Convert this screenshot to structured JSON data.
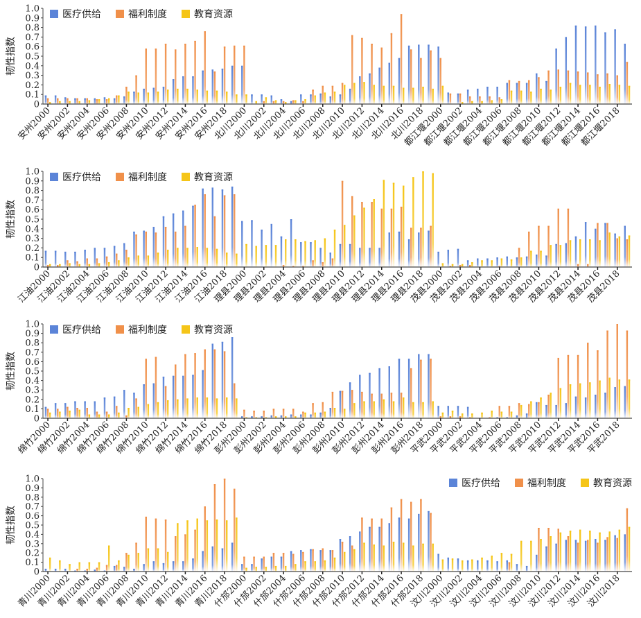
{
  "chart_data": [
    {
      "type": "bar",
      "ylabel": "韧性指数",
      "ylim": [
        0,
        1.0
      ],
      "yticks": [
        "0",
        "0.1",
        "0.2",
        "0.3",
        "0.4",
        "0.5",
        "0.6",
        "0.7",
        "0.8",
        "0.9",
        "1.0"
      ],
      "legend": [
        "医疗供给",
        "福利制度",
        "教育资源"
      ],
      "legend_position": "top-left",
      "regions": [
        "安州",
        "北川",
        "都江堰"
      ],
      "years": [
        2000,
        2001,
        2002,
        2003,
        2004,
        2005,
        2006,
        2007,
        2008,
        2009,
        2010,
        2011,
        2012,
        2013,
        2014,
        2015,
        2016,
        2017,
        2018,
        2019
      ],
      "tick_labels": [
        "安州2000",
        "安州2002",
        "安州2004",
        "安州2006",
        "安州2008",
        "安州2010",
        "安州2012",
        "安州2014",
        "安州2016",
        "安州2018",
        "北川2000",
        "北川2002",
        "北川2004",
        "北川2006",
        "北川2008",
        "北川2010",
        "北川2012",
        "北川2014",
        "北川2016",
        "北川2018",
        "都江堰2000",
        "都江堰2002",
        "都江堰2004",
        "都江堰2006",
        "都江堰2008",
        "都江堰2010",
        "都江堰2012",
        "都江堰2014",
        "都江堰2016",
        "都江堰2018"
      ],
      "series": [
        {
          "name": "医疗供给",
          "values": [
            0.09,
            0.09,
            0.07,
            0.06,
            0.06,
            0.06,
            0.07,
            0.06,
            0.08,
            0.13,
            0.16,
            0.17,
            0.18,
            0.26,
            0.29,
            0.29,
            0.35,
            0.36,
            0.37,
            0.4,
            0.4,
            0.1,
            0.1,
            0.09,
            0.05,
            0.03,
            0.1,
            0.1,
            0.11,
            0.08,
            0.1,
            0.16,
            0.29,
            0.32,
            0.38,
            0.43,
            0.48,
            0.61,
            0.62,
            0.62,
            0.6,
            0.12,
            0.11,
            0.15,
            0.16,
            0.18,
            0.18,
            0.22,
            0.22,
            0.22,
            0.32,
            0.24,
            0.58,
            0.7,
            0.82,
            0.81,
            0.82,
            0.75,
            0.78,
            0.63
          ]
        },
        {
          "name": "福利制度",
          "values": [
            0.06,
            0.06,
            0.06,
            0.06,
            0.06,
            0.05,
            0.05,
            0.09,
            0.18,
            0.3,
            0.58,
            0.58,
            0.63,
            0.57,
            0.63,
            0.66,
            0.76,
            0.34,
            0.6,
            0.61,
            0.61,
            0.0,
            0.03,
            0.03,
            0.03,
            0.04,
            0.03,
            0.15,
            0.19,
            0.19,
            0.22,
            0.72,
            0.69,
            0.63,
            0.59,
            0.74,
            0.94,
            0.57,
            0.48,
            0.56,
            0.48,
            0.11,
            0.11,
            0.08,
            0.08,
            0.08,
            0.07,
            0.25,
            0.24,
            0.25,
            0.28,
            0.35,
            0.36,
            0.35,
            0.34,
            0.33,
            0.31,
            0.32,
            0.3,
            0.44
          ]
        },
        {
          "name": "教育资源",
          "values": [
            0.02,
            0.03,
            0.03,
            0.03,
            0.04,
            0.05,
            0.06,
            0.09,
            0.13,
            0.12,
            0.12,
            0.13,
            0.15,
            0.16,
            0.16,
            0.15,
            0.14,
            0.14,
            0.13,
            0.1,
            0.1,
            0.03,
            0.07,
            0.04,
            0.02,
            0.04,
            0.05,
            0.09,
            0.12,
            0.13,
            0.2,
            0.22,
            0.23,
            0.2,
            0.19,
            0.19,
            0.17,
            0.17,
            0.18,
            0.16,
            0.19,
            0.0,
            0.02,
            0.03,
            0.03,
            0.04,
            0.05,
            0.14,
            0.14,
            0.13,
            0.16,
            0.15,
            0.18,
            0.22,
            0.2,
            0.2,
            0.18,
            0.21,
            0.2,
            0.19
          ]
        }
      ]
    },
    {
      "type": "bar",
      "ylabel": "韧性指数",
      "ylim": [
        0,
        1.0
      ],
      "yticks": [
        "0",
        "0.1",
        "0.2",
        "0.3",
        "0.4",
        "0.5",
        "0.6",
        "0.7",
        "0.8",
        "0.9",
        "1.0"
      ],
      "legend": [
        "医疗供给",
        "福利制度",
        "教育资源"
      ],
      "legend_position": "top-left",
      "regions": [
        "江油",
        "理县",
        "茂县"
      ],
      "years": [
        2000,
        2001,
        2002,
        2003,
        2004,
        2005,
        2006,
        2007,
        2008,
        2009,
        2010,
        2011,
        2012,
        2013,
        2014,
        2015,
        2016,
        2017,
        2018,
        2019
      ],
      "tick_labels": [
        "江油2000",
        "江油2002",
        "江油2004",
        "江油2006",
        "江油2008",
        "江油2010",
        "江油2012",
        "江油2014",
        "江油2016",
        "江油2018",
        "理县2000",
        "理县2002",
        "理县2004",
        "理县2006",
        "理县2008",
        "理县2010",
        "理县2012",
        "理县2014",
        "理县2016",
        "理县2018",
        "茂县2000",
        "茂县2002",
        "茂县2004",
        "茂县2006",
        "茂县2008",
        "茂县2010",
        "茂县2012",
        "茂县2014",
        "茂县2016",
        "茂县2018"
      ],
      "series": [
        {
          "name": "医疗供给",
          "values": [
            0.17,
            0.17,
            0.16,
            0.16,
            0.18,
            0.2,
            0.2,
            0.22,
            0.25,
            0.37,
            0.38,
            0.42,
            0.53,
            0.56,
            0.59,
            0.64,
            0.82,
            0.83,
            0.81,
            0.84,
            0.48,
            0.49,
            0.39,
            0.45,
            0.32,
            0.5,
            0.26,
            0.26,
            0.2,
            0.15,
            0.24,
            0.24,
            0.2,
            0.2,
            0.2,
            0.36,
            0.37,
            0.29,
            0.36,
            0.38,
            0.16,
            0.18,
            0.19,
            0.07,
            0.09,
            0.09,
            0.1,
            0.11,
            0.1,
            0.11,
            0.13,
            0.12,
            0.24,
            0.25,
            0.32,
            0.47,
            0.4,
            0.46,
            0.35,
            0.43
          ]
        },
        {
          "name": "福利制度",
          "values": [
            0.02,
            0.02,
            0.07,
            0.06,
            0.09,
            0.09,
            0.11,
            0.14,
            0.18,
            0.34,
            0.37,
            0.36,
            0.42,
            0.37,
            0.43,
            0.65,
            0.76,
            0.53,
            0.75,
            0.76,
            0.0,
            0.0,
            0.0,
            0.0,
            0.02,
            0.01,
            0.01,
            0.07,
            0.05,
            0.09,
            0.9,
            0.74,
            0.68,
            0.68,
            0.61,
            0.61,
            0.63,
            0.41,
            0.41,
            0.43,
            0.0,
            0.01,
            0.02,
            0.02,
            0.0,
            0.0,
            0.01,
            0.0,
            0.2,
            0.37,
            0.43,
            0.43,
            0.61,
            0.61,
            0.03,
            0.03,
            0.46,
            0.46,
            0.3,
            0.29
          ]
        },
        {
          "name": "教育资源",
          "values": [
            0.03,
            0.03,
            0.04,
            0.03,
            0.03,
            0.04,
            0.05,
            0.07,
            0.1,
            0.12,
            0.12,
            0.15,
            0.18,
            0.2,
            0.2,
            0.21,
            0.2,
            0.19,
            0.15,
            0.14,
            0.24,
            0.22,
            0.23,
            0.23,
            0.29,
            0.29,
            0.27,
            0.28,
            0.3,
            0.39,
            0.44,
            0.54,
            0.62,
            0.71,
            0.91,
            0.88,
            0.85,
            0.94,
            1.0,
            0.98,
            0.04,
            0.03,
            0.03,
            0.05,
            0.07,
            0.07,
            0.09,
            0.08,
            0.1,
            0.17,
            0.17,
            0.23,
            0.23,
            0.28,
            0.29,
            0.29,
            0.28,
            0.36,
            0.32,
            0.33
          ]
        }
      ]
    },
    {
      "type": "bar",
      "ylabel": "韧性指数",
      "ylim": [
        0,
        1.0
      ],
      "yticks": [
        "0",
        "0.1",
        "0.2",
        "0.3",
        "0.4",
        "0.5",
        "0.6",
        "0.7",
        "0.8",
        "0.9",
        "1.0"
      ],
      "legend": [
        "医疗供给",
        "福利制度",
        "教育资源"
      ],
      "legend_position": "top-left",
      "regions": [
        "绵竹",
        "彭州",
        "平武"
      ],
      "years": [
        2000,
        2001,
        2002,
        2003,
        2004,
        2005,
        2006,
        2007,
        2008,
        2009,
        2010,
        2011,
        2012,
        2013,
        2014,
        2015,
        2016,
        2017,
        2018,
        2019
      ],
      "tick_labels": [
        "绵竹2000",
        "绵竹2002",
        "绵竹2004",
        "绵竹2006",
        "绵竹2008",
        "绵竹2010",
        "绵竹2012",
        "绵竹2014",
        "绵竹2016",
        "绵竹2018",
        "彭州2000",
        "彭州2002",
        "彭州2004",
        "彭州2006",
        "彭州2008",
        "彭州2010",
        "彭州2012",
        "彭州2014",
        "彭州2016",
        "彭州2018",
        "平武2000",
        "平武2002",
        "平武2004",
        "平武2006",
        "平武2008",
        "平武2010",
        "平武2012",
        "平武2014",
        "平武2016",
        "平武2018"
      ],
      "series": [
        {
          "name": "医疗供给",
          "values": [
            0.12,
            0.16,
            0.16,
            0.18,
            0.18,
            0.18,
            0.22,
            0.23,
            0.3,
            0.27,
            0.36,
            0.37,
            0.44,
            0.45,
            0.45,
            0.46,
            0.51,
            0.79,
            0.81,
            0.86,
            0.02,
            0.02,
            0.02,
            0.03,
            0.03,
            0.04,
            0.04,
            0.04,
            0.06,
            0.11,
            0.29,
            0.38,
            0.46,
            0.48,
            0.53,
            0.55,
            0.63,
            0.63,
            0.68,
            0.68,
            0.13,
            0.13,
            0.13,
            0.12,
            0.0,
            0.0,
            0.01,
            0.01,
            0.03,
            0.05,
            0.17,
            0.14,
            0.14,
            0.16,
            0.23,
            0.22,
            0.25,
            0.27,
            0.33,
            0.34
          ]
        },
        {
          "name": "福利制度",
          "values": [
            0.1,
            0.1,
            0.12,
            0.11,
            0.11,
            0.07,
            0.07,
            0.13,
            0.03,
            0.21,
            0.63,
            0.65,
            0.34,
            0.57,
            0.68,
            0.69,
            0.73,
            0.73,
            0.71,
            0.37,
            0.09,
            0.08,
            0.08,
            0.1,
            0.1,
            0.1,
            0.07,
            0.16,
            0.17,
            0.28,
            0.29,
            0.3,
            0.28,
            0.26,
            0.26,
            0.27,
            0.27,
            0.53,
            0.62,
            0.63,
            0.02,
            0.02,
            0.02,
            0.01,
            0.0,
            0.01,
            0.13,
            0.13,
            0.16,
            0.15,
            0.17,
            0.25,
            0.64,
            0.67,
            0.67,
            0.8,
            0.72,
            0.93,
            1.0,
            0.93
          ]
        },
        {
          "name": "教育资源",
          "values": [
            0.06,
            0.07,
            0.08,
            0.09,
            0.04,
            0.04,
            0.04,
            0.06,
            0.11,
            0.12,
            0.15,
            0.17,
            0.19,
            0.2,
            0.21,
            0.22,
            0.22,
            0.21,
            0.22,
            0.21,
            0.01,
            0.01,
            0.01,
            0.02,
            0.02,
            0.02,
            0.06,
            0.06,
            0.07,
            0.11,
            0.1,
            0.16,
            0.18,
            0.18,
            0.2,
            0.18,
            0.22,
            0.17,
            0.17,
            0.18,
            0.06,
            0.08,
            0.05,
            0.05,
            0.06,
            0.08,
            0.07,
            0.07,
            0.14,
            0.18,
            0.22,
            0.27,
            0.32,
            0.36,
            0.37,
            0.38,
            0.4,
            0.43,
            0.41,
            0.41
          ]
        }
      ]
    },
    {
      "type": "bar",
      "ylabel": "韧性指数",
      "ylim": [
        0,
        1.0
      ],
      "yticks": [
        "0",
        "0.1",
        "0.2",
        "0.3",
        "0.4",
        "0.5",
        "0.6",
        "0.7",
        "0.8",
        "0.9",
        "1.0"
      ],
      "legend": [
        "医疗供给",
        "福利制度",
        "教育资源"
      ],
      "legend_position": "top-right",
      "regions": [
        "青川",
        "什邡",
        "汶川"
      ],
      "years": [
        2000,
        2001,
        2002,
        2003,
        2004,
        2005,
        2006,
        2007,
        2008,
        2009,
        2010,
        2011,
        2012,
        2013,
        2014,
        2015,
        2016,
        2017,
        2018,
        2019
      ],
      "tick_labels": [
        "青川2000",
        "青川2002",
        "青川2004",
        "青川2006",
        "青川2008",
        "青川2010",
        "青川2012",
        "青川2014",
        "青川2016",
        "青川2018",
        "什邡2000",
        "什邡2002",
        "什邡2004",
        "什邡2006",
        "什邡2008",
        "什邡2010",
        "什邡2012",
        "什邡2014",
        "什邡2016",
        "什邡2018",
        "汶川2000",
        "汶川2002",
        "汶川2004",
        "汶川2006",
        "汶川2008",
        "汶川2010",
        "汶川2012",
        "汶川2014",
        "汶川2016",
        "汶川2018"
      ],
      "series": [
        {
          "name": "医疗供给",
          "values": [
            0.03,
            0.03,
            0.03,
            0.01,
            0.01,
            0.02,
            0.01,
            0.06,
            0.05,
            0.03,
            0.08,
            0.11,
            0.09,
            0.11,
            0.11,
            0.14,
            0.22,
            0.27,
            0.25,
            0.31,
            0.08,
            0.08,
            0.14,
            0.16,
            0.16,
            0.22,
            0.23,
            0.24,
            0.23,
            0.23,
            0.35,
            0.38,
            0.43,
            0.48,
            0.48,
            0.52,
            0.58,
            0.57,
            0.62,
            0.65,
            0.19,
            0.15,
            0.14,
            0.12,
            0.12,
            0.12,
            0.11,
            0.12,
            0.08,
            0.06,
            0.18,
            0.27,
            0.3,
            0.34,
            0.34,
            0.33,
            0.35,
            0.34,
            0.39,
            0.4
          ]
        },
        {
          "name": "福利制度",
          "values": [
            0.0,
            0.0,
            0.0,
            0.03,
            0.03,
            0.04,
            0.07,
            0.07,
            0.2,
            0.31,
            0.59,
            0.57,
            0.56,
            0.38,
            0.4,
            0.45,
            0.7,
            0.94,
            1.0,
            0.89,
            0.16,
            0.16,
            0.16,
            0.2,
            0.2,
            0.19,
            0.21,
            0.24,
            0.25,
            0.23,
            0.32,
            0.28,
            0.58,
            0.57,
            0.57,
            0.69,
            0.78,
            0.75,
            0.78,
            0.63,
            0.0,
            0.0,
            0.0,
            0.0,
            0.0,
            0.0,
            0.0,
            0.1,
            0.0,
            0.0,
            0.47,
            0.47,
            0.46,
            0.38,
            0.31,
            0.34,
            0.31,
            0.37,
            0.36,
            0.68
          ]
        },
        {
          "name": "教育资源",
          "values": [
            0.15,
            0.12,
            0.08,
            0.1,
            0.1,
            0.1,
            0.28,
            0.12,
            0.18,
            0.2,
            0.25,
            0.25,
            0.21,
            0.52,
            0.55,
            0.57,
            0.55,
            0.56,
            0.55,
            0.58,
            0.04,
            0.05,
            0.05,
            0.06,
            0.06,
            0.08,
            0.11,
            0.11,
            0.12,
            0.15,
            0.21,
            0.24,
            0.31,
            0.29,
            0.28,
            0.32,
            0.31,
            0.28,
            0.3,
            0.3,
            0.13,
            0.14,
            0.12,
            0.13,
            0.15,
            0.17,
            0.2,
            0.19,
            0.33,
            0.33,
            0.35,
            0.38,
            0.42,
            0.44,
            0.45,
            0.44,
            0.42,
            0.43,
            0.45,
            0.48
          ]
        }
      ]
    }
  ]
}
